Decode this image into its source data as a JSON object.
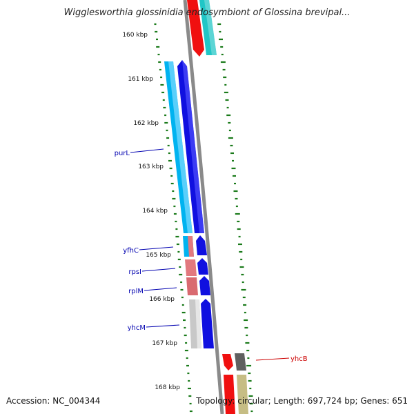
{
  "title": "Wigglesworthia glossinidia endosymbiont of Glossina brevipal...",
  "footer": {
    "accession": "Accession: NC_004344",
    "summary": "Topology: circular; Length: 697,724 bp; Genes: 651"
  },
  "ticks": [
    "160 kbp",
    "161 kbp",
    "162 kbp",
    "163 kbp",
    "164 kbp",
    "165 kbp",
    "166 kbp",
    "167 kbp",
    "168 kbp"
  ],
  "gene_labels": [
    "purL",
    "yfhC",
    "rpsI",
    "rplM",
    "yhcM",
    "yhcB"
  ],
  "colors": {
    "forward_cog": "#00b3f0",
    "reverse_cog": "#cc6a72",
    "orf_blue": "#1010e0",
    "orf_red": "#f01010",
    "cyan": "#21c6c6",
    "gray": "#c8c8c8",
    "dark_gray": "#606060",
    "olive": "#c6bd84",
    "backbone": "#888888",
    "gc_tick": "#1a7a1a",
    "label_blue": "#0000b0",
    "label_red": "#cc0000"
  }
}
